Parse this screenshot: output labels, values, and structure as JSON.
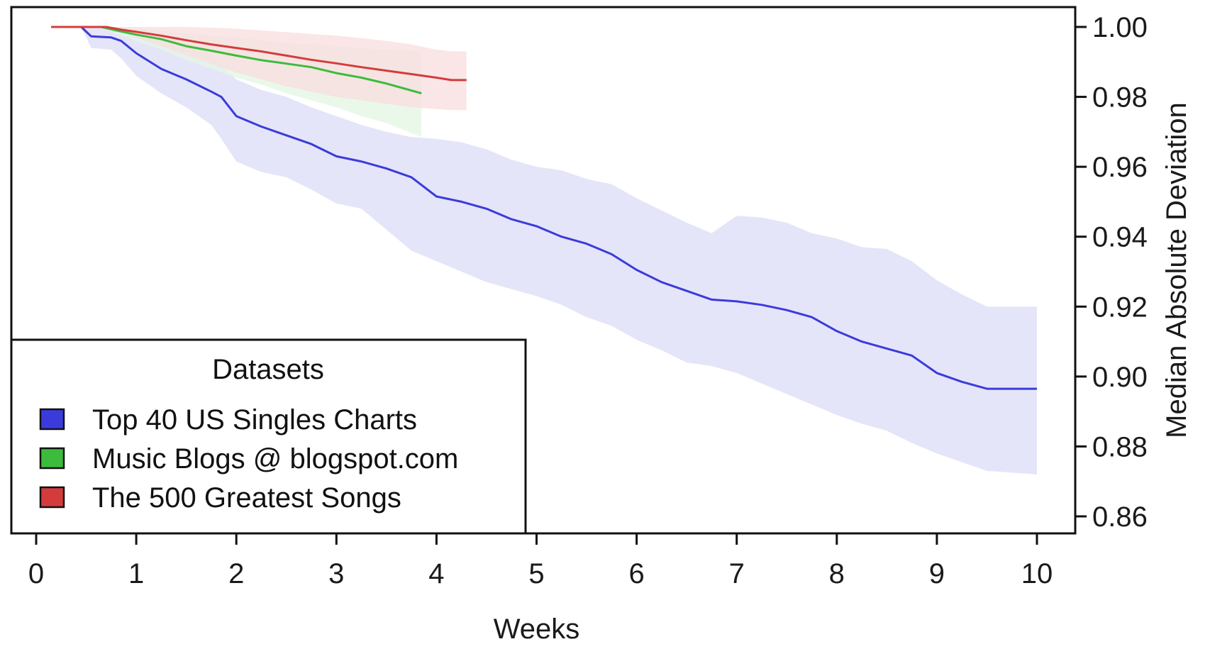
{
  "chart_data": {
    "type": "line",
    "xlabel": "Weeks",
    "ylabel": "Median Absolute Deviation",
    "xlim": [
      0,
      10
    ],
    "ylim": [
      0.855,
      1.0065
    ],
    "x_ticks": [
      0,
      1,
      2,
      3,
      4,
      5,
      6,
      7,
      8,
      9,
      10
    ],
    "x_tick_labels": [
      "0",
      "1",
      "2",
      "3",
      "4",
      "5",
      "6",
      "7",
      "8",
      "9",
      "10"
    ],
    "y_ticks": [
      0.86,
      0.88,
      0.9,
      0.92,
      0.94,
      0.96,
      0.98,
      1.0
    ],
    "y_tick_labels": [
      "0.86",
      "0.88",
      "0.90",
      "0.92",
      "0.94",
      "0.96",
      "0.98",
      "1.00"
    ],
    "y_axis_position": "right",
    "grid": false,
    "legend": {
      "title": "Datasets",
      "placement": "bottom-left",
      "entries": [
        "Top 40 US Singles Charts",
        "Music Blogs @ blogspot.com",
        "The 500 Greatest Songs"
      ]
    },
    "series": [
      {
        "name": "Top 40 US Singles Charts",
        "color": "#3b3bdc",
        "band_color": "#dcdcf7",
        "x": [
          0.15,
          0.45,
          0.55,
          0.75,
          0.85,
          1.0,
          1.25,
          1.5,
          1.75,
          1.85,
          2.0,
          2.25,
          2.5,
          2.75,
          3.0,
          3.25,
          3.5,
          3.75,
          4.0,
          4.25,
          4.5,
          4.75,
          5.0,
          5.25,
          5.5,
          5.75,
          6.0,
          6.25,
          6.5,
          6.75,
          7.0,
          7.25,
          7.5,
          7.75,
          8.0,
          8.25,
          8.5,
          8.75,
          9.0,
          9.25,
          9.5,
          9.75,
          10.0
        ],
        "values": [
          1.0,
          1.0,
          0.9973,
          0.997,
          0.996,
          0.9925,
          0.988,
          0.985,
          0.9815,
          0.98,
          0.9745,
          0.9715,
          0.969,
          0.9665,
          0.963,
          0.9615,
          0.9595,
          0.957,
          0.9515,
          0.95,
          0.948,
          0.945,
          0.943,
          0.94,
          0.938,
          0.935,
          0.9305,
          0.927,
          0.9245,
          0.922,
          0.9215,
          0.9205,
          0.919,
          0.917,
          0.913,
          0.91,
          0.908,
          0.906,
          0.901,
          0.8985,
          0.8965,
          0.8965,
          0.8965
        ],
        "band_upper": [
          1.0,
          1.0,
          1.0,
          1.0,
          1.0,
          0.9985,
          0.9965,
          0.9945,
          0.992,
          0.989,
          0.985,
          0.982,
          0.98,
          0.977,
          0.9745,
          0.972,
          0.97,
          0.9685,
          0.968,
          0.967,
          0.965,
          0.962,
          0.96,
          0.959,
          0.9565,
          0.955,
          0.951,
          0.9475,
          0.944,
          0.941,
          0.946,
          0.9455,
          0.944,
          0.941,
          0.9395,
          0.937,
          0.9365,
          0.933,
          0.9275,
          0.9235,
          0.92,
          0.92,
          0.92
        ],
        "band_lower": [
          1.0,
          1.0,
          0.994,
          0.9935,
          0.991,
          0.986,
          0.981,
          0.977,
          0.972,
          0.968,
          0.9615,
          0.9585,
          0.957,
          0.9535,
          0.9495,
          0.948,
          0.942,
          0.936,
          0.933,
          0.93,
          0.927,
          0.925,
          0.923,
          0.9205,
          0.917,
          0.9145,
          0.9105,
          0.9075,
          0.904,
          0.903,
          0.901,
          0.898,
          0.895,
          0.892,
          0.889,
          0.8865,
          0.8845,
          0.881,
          0.878,
          0.8755,
          0.873,
          0.8725,
          0.872
        ]
      },
      {
        "name": "Music Blogs @ blogspot.com",
        "color": "#3cbb3c",
        "band_color": "#e3f5e3",
        "x": [
          0.15,
          0.65,
          0.8,
          1.0,
          1.25,
          1.5,
          1.75,
          2.0,
          2.25,
          2.5,
          2.75,
          3.0,
          3.25,
          3.5,
          3.85
        ],
        "values": [
          1.0,
          1.0,
          0.999,
          0.9978,
          0.9965,
          0.9945,
          0.9932,
          0.9918,
          0.9905,
          0.9895,
          0.9885,
          0.9868,
          0.9855,
          0.9838,
          0.981
        ],
        "band_upper": [
          1.0,
          1.0,
          1.0,
          0.9995,
          0.999,
          0.998,
          0.9975,
          0.997,
          0.9962,
          0.9955,
          0.995,
          0.9945,
          0.994,
          0.9935,
          0.993
        ],
        "band_lower": [
          1.0,
          1.0,
          0.998,
          0.996,
          0.9935,
          0.9905,
          0.988,
          0.9855,
          0.9835,
          0.981,
          0.979,
          0.977,
          0.9745,
          0.9725,
          0.9685
        ]
      },
      {
        "name": "The 500 Greatest Songs",
        "color": "#d43c3c",
        "band_color": "#f8dede",
        "x": [
          0.15,
          0.7,
          0.85,
          1.0,
          1.25,
          1.5,
          1.75,
          2.0,
          2.25,
          2.5,
          2.75,
          3.0,
          3.25,
          3.5,
          3.75,
          4.0,
          4.15,
          4.3
        ],
        "values": [
          1.0,
          1.0,
          0.9992,
          0.9986,
          0.9975,
          0.9962,
          0.995,
          0.994,
          0.993,
          0.9918,
          0.9906,
          0.9896,
          0.9885,
          0.9875,
          0.9865,
          0.9855,
          0.9848,
          0.9848
        ],
        "band_upper": [
          1.0,
          1.0,
          1.0,
          1.0,
          1.0,
          1.0,
          0.9998,
          0.9995,
          0.999,
          0.9985,
          0.998,
          0.9975,
          0.9968,
          0.996,
          0.995,
          0.9935,
          0.993,
          0.993
        ],
        "band_lower": [
          1.0,
          1.0,
          0.9985,
          0.997,
          0.9945,
          0.992,
          0.9895,
          0.987,
          0.985,
          0.983,
          0.9815,
          0.98,
          0.979,
          0.978,
          0.977,
          0.9765,
          0.9762,
          0.9762
        ]
      }
    ]
  }
}
